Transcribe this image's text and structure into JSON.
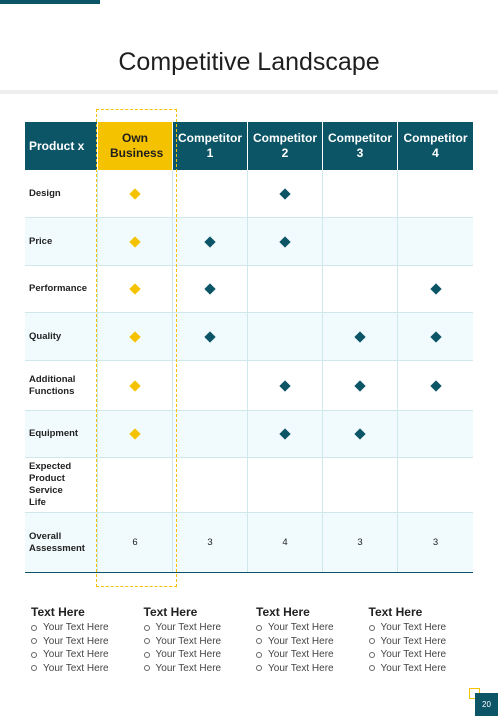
{
  "title": "Competitive Landscape",
  "table": {
    "headers": [
      "Product x",
      "Own Business",
      "Competitor 1",
      "Competitor 2",
      "Competitor 3",
      "Competitor 4"
    ],
    "rows": [
      {
        "label": "Design",
        "marks": [
          true,
          false,
          true,
          false,
          false
        ]
      },
      {
        "label": "Price",
        "marks": [
          true,
          true,
          true,
          false,
          false
        ]
      },
      {
        "label": "Performance",
        "marks": [
          true,
          true,
          false,
          false,
          true
        ]
      },
      {
        "label": "Quality",
        "marks": [
          true,
          true,
          false,
          true,
          true
        ]
      },
      {
        "label": "Additional Functions",
        "marks": [
          true,
          false,
          true,
          true,
          true
        ]
      },
      {
        "label": "Equipment",
        "marks": [
          true,
          false,
          true,
          true,
          false
        ]
      },
      {
        "label": "Expected Product Service Life",
        "marks": [
          false,
          false,
          false,
          false,
          false
        ]
      }
    ],
    "overall": {
      "label": "Overall Assessment",
      "values": [
        "6",
        "3",
        "4",
        "3",
        "3"
      ]
    },
    "colors": {
      "header": "#0b5566",
      "own": "#f5c200",
      "mark_competitor": "#0b5566",
      "mark_own": "#f5c200"
    }
  },
  "notes": [
    {
      "title": "Text Here",
      "items": [
        "Your Text Here",
        "Your Text Here",
        "Your Text Here",
        "Your Text Here"
      ]
    },
    {
      "title": "Text Here",
      "items": [
        "Your Text Here",
        "Your Text Here",
        "Your Text Here",
        "Your Text Here"
      ]
    },
    {
      "title": "Text Here",
      "items": [
        "Your Text Here",
        "Your Text Here",
        "Your Text Here",
        "Your Text Here"
      ]
    },
    {
      "title": "Text Here",
      "items": [
        "Your Text Here",
        "Your Text Here",
        "Your Text Here",
        "Your Text Here"
      ]
    }
  ],
  "page_number": "20"
}
